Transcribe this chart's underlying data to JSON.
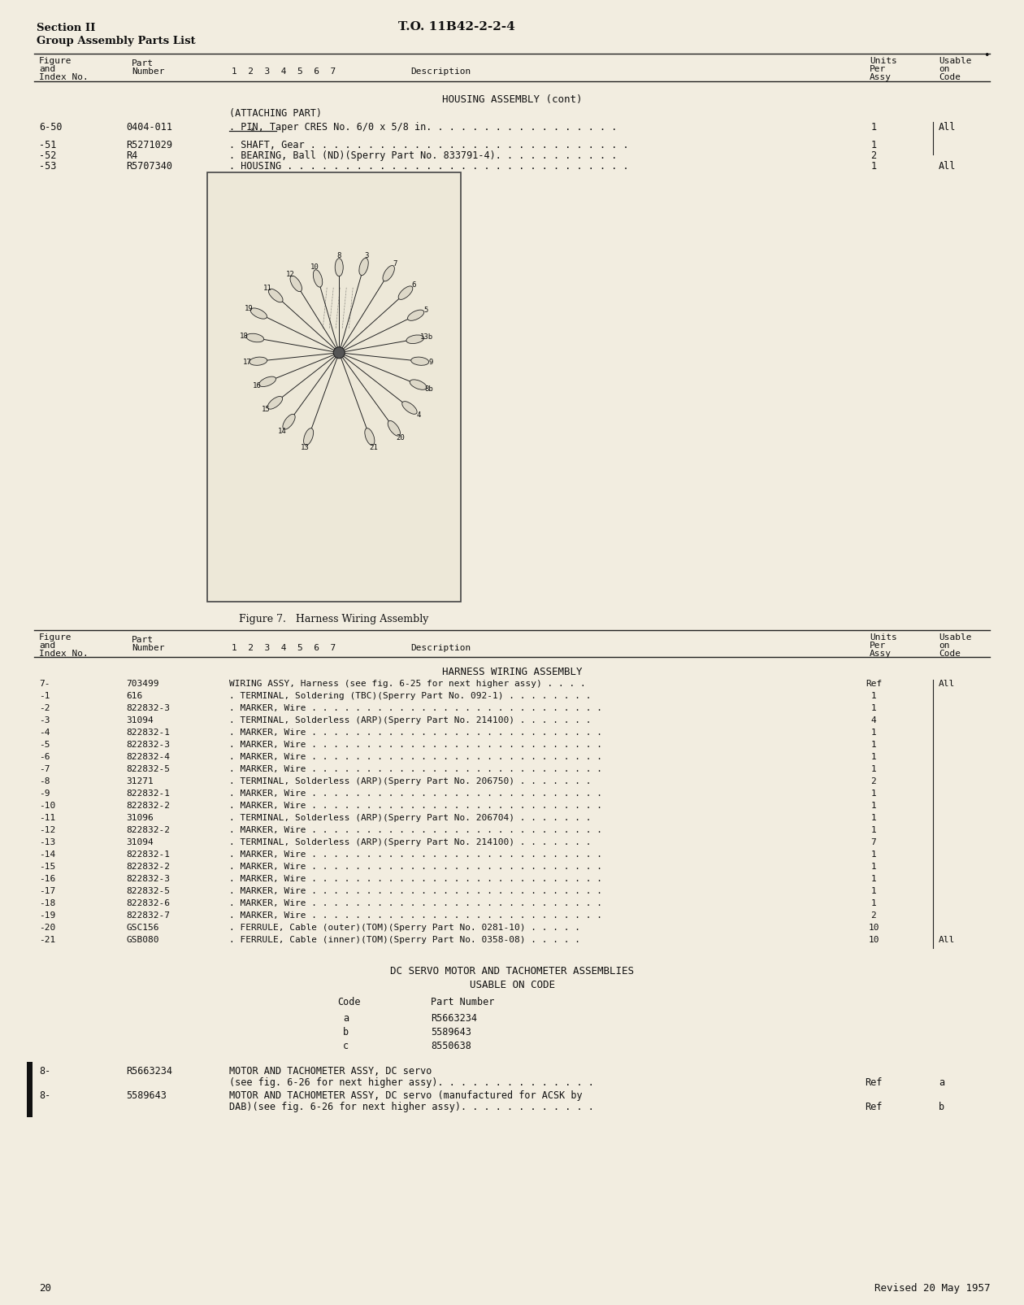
{
  "bg_color": "#f2ede0",
  "text_color": "#1a1a1a",
  "header_left_line1": "Section II",
  "header_left_line2": "Group Assembly Parts List",
  "header_center": "T.O. 11B42-2-2-4",
  "page_number": "20",
  "footer_right": "Revised 20 May 1957",
  "figure_caption": "Figure 7.   Harness Wiring Assembly",
  "section1_title": "HOUSING ASSEMBLY (cont)",
  "section2_title": "HARNESS WIRING ASSEMBLY",
  "dc_section_title": "DC SERVO MOTOR AND TACHOMETER ASSEMBLIES",
  "dc_usable_title": "USABLE ON CODE",
  "dc_codes": [
    [
      "a",
      "R5663234"
    ],
    [
      "b",
      "5589643"
    ],
    [
      "c",
      "8550638"
    ]
  ]
}
